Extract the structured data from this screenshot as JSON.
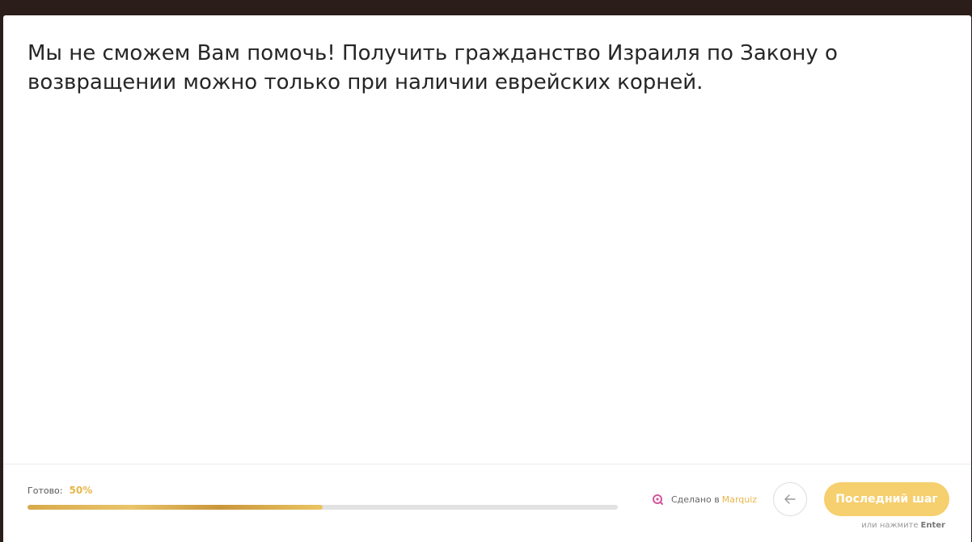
{
  "top_nav": {
    "items": [
      "",
      "",
      "",
      "",
      "",
      "",
      "",
      ""
    ]
  },
  "question": {
    "text": "Мы не сможем Вам помочь! Получить гражданство Израиля по Закону о возвращении можно только при наличии еврейских корней."
  },
  "footer": {
    "progress_label": "Готово:",
    "progress_value": "50%",
    "progress_fraction": 0.5,
    "made_in_prefix": "Сделано в",
    "made_in_brand": "Marquiz",
    "next_button_label": "Последний шаг",
    "enter_hint_prefix": "или нажмите",
    "enter_hint_key": "Enter"
  },
  "icons": {
    "back": "arrow-left-icon",
    "brand": "marquiz-logo-icon"
  },
  "colors": {
    "accent": "#f6cf6e",
    "accent_text": "#e8b64a",
    "brand_icon": "#d3569b",
    "background_dark": "#2a1d1a"
  }
}
